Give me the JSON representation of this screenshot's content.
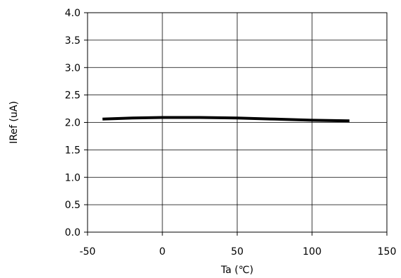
{
  "chart_data": {
    "type": "line",
    "title": "",
    "xlabel": "Ta (℃)",
    "ylabel": "IRef (uA)",
    "xlim": [
      -50,
      150
    ],
    "ylim": [
      0,
      4
    ],
    "x_ticks": [
      -50,
      0,
      50,
      100,
      150
    ],
    "y_ticks": [
      0,
      0.5,
      1,
      1.5,
      2,
      2.5,
      3,
      3.5,
      4
    ],
    "x_tick_labels": [
      "-50",
      "0",
      "50",
      "100",
      "150"
    ],
    "y_tick_labels": [
      "0.0",
      "0.5",
      "1.0",
      "1.5",
      "2.0",
      "2.5",
      "3.0",
      "3.5",
      "4.0"
    ],
    "grid": true,
    "legend": "none",
    "series": [
      {
        "x": [
          -40,
          -20,
          0,
          25,
          50,
          75,
          100,
          125
        ],
        "y": [
          2.06,
          2.08,
          2.09,
          2.09,
          2.08,
          2.06,
          2.04,
          2.03
        ],
        "color": "#000000"
      }
    ]
  }
}
